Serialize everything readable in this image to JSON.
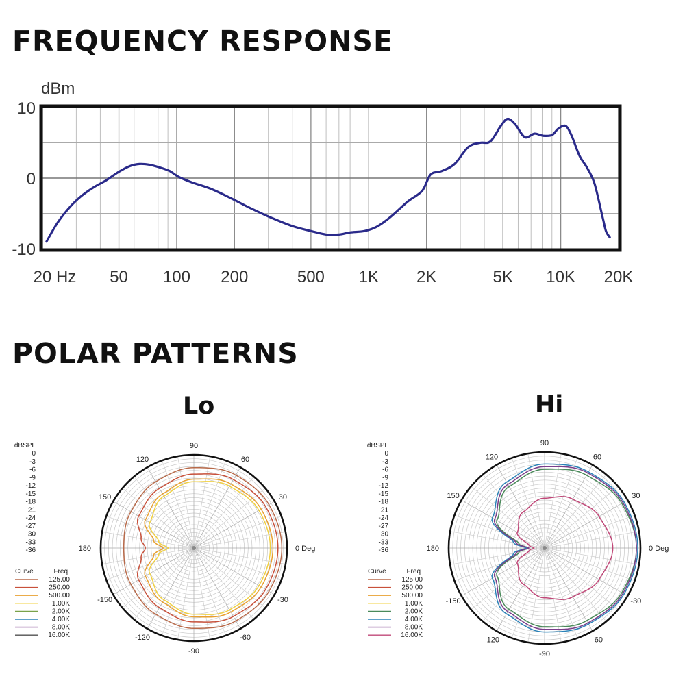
{
  "headings": {
    "frequency_response": "FREQUENCY RESPONSE",
    "polar_patterns": "POLAR PATTERNS"
  },
  "chart_data": [
    {
      "type": "line",
      "title": "FREQUENCY RESPONSE",
      "ylabel": "dBm",
      "xscale": "log",
      "xlim": [
        20,
        20000
      ],
      "ylim": [
        -10,
        10
      ],
      "yticks": [
        10,
        0,
        -10
      ],
      "ytick_labels": [
        "10",
        "0",
        "-10"
      ],
      "xticks": [
        20,
        50,
        100,
        200,
        500,
        1000,
        2000,
        5000,
        10000,
        20000
      ],
      "xtick_labels": [
        "20 Hz",
        "50",
        "100",
        "200",
        "500",
        "1K",
        "2K",
        "5K",
        "10K",
        "20K"
      ],
      "grid": true,
      "series": [
        {
          "color": "#2a2a8a",
          "x": [
            21,
            24,
            28,
            32,
            37,
            43,
            50,
            57,
            64,
            72,
            82,
            92,
            102,
            120,
            150,
            190,
            240,
            310,
            400,
            500,
            600,
            700,
            800,
            950,
            1100,
            1300,
            1600,
            1900,
            2100,
            2400,
            2800,
            3300,
            3800,
            4300,
            4900,
            5300,
            5800,
            6500,
            7300,
            8100,
            9000,
            9700,
            10600,
            11400,
            12500,
            13700,
            15000,
            16500,
            17200,
            18000
          ],
          "y": [
            -9.0,
            -6.3,
            -4.0,
            -2.5,
            -1.3,
            -0.3,
            0.9,
            1.7,
            2.0,
            1.9,
            1.5,
            1.0,
            0.2,
            -0.6,
            -1.5,
            -2.8,
            -4.2,
            -5.6,
            -6.8,
            -7.5,
            -8.0,
            -8.0,
            -7.7,
            -7.5,
            -6.9,
            -5.5,
            -3.3,
            -1.8,
            0.5,
            1.0,
            2.0,
            4.4,
            5.0,
            5.2,
            7.5,
            8.4,
            7.6,
            5.8,
            6.3,
            6.0,
            6.1,
            7.0,
            7.4,
            6.0,
            3.2,
            1.5,
            -0.8,
            -5.5,
            -7.5,
            -8.4
          ]
        }
      ]
    },
    {
      "type": "polar",
      "title": "Lo",
      "radial_label": "dBSPL",
      "radial_ticks": [
        "0",
        "-3",
        "-6",
        "-9",
        "-12",
        "-15",
        "-18",
        "-21",
        "-24",
        "-27",
        "-30",
        "-33",
        "-36"
      ],
      "angle_labels": [
        "0 Deg",
        "30",
        "60",
        "90",
        "120",
        "150",
        "180",
        "-150",
        "-120",
        "-90",
        "-60",
        "-30"
      ],
      "legend": {
        "headers": [
          "Curve",
          "Freq"
        ],
        "entries": [
          {
            "freq": "125.00",
            "color": "#b86a4a"
          },
          {
            "freq": "250.00",
            "color": "#c8503a"
          },
          {
            "freq": "500.00",
            "color": "#e8a030"
          },
          {
            "freq": "1.00K",
            "color": "#f0d040"
          },
          {
            "freq": "2.00K",
            "color": "#7aa24a"
          },
          {
            "freq": "4.00K",
            "color": "#2a82b8"
          },
          {
            "freq": "8.00K",
            "color": "#7a3e8a"
          },
          {
            "freq": "16.00K",
            "color": "#505050"
          }
        ]
      },
      "series": [
        {
          "freq": "125.00",
          "color": "#b86a4a",
          "angles_deg": [
            0,
            30,
            60,
            90,
            120,
            150,
            180,
            210,
            240,
            270,
            300,
            330
          ],
          "level_db": [
            -1.5,
            -2,
            -3,
            -4.5,
            -6,
            -7.5,
            -8.5,
            -7.5,
            -6,
            -4.5,
            -3,
            -2
          ]
        },
        {
          "freq": "250.00",
          "color": "#c8503a",
          "angles_deg": [
            0,
            30,
            60,
            90,
            120,
            150,
            170,
            180,
            190,
            210,
            240,
            270,
            300,
            330
          ],
          "level_db": [
            -3,
            -3.5,
            -5,
            -7,
            -9,
            -11,
            -15,
            -17,
            -15,
            -11,
            -9,
            -7,
            -5,
            -3.5
          ]
        },
        {
          "freq": "500.00",
          "color": "#e8a030",
          "angles_deg": [
            0,
            30,
            60,
            90,
            120,
            150,
            170,
            180,
            190,
            210,
            240,
            270,
            300,
            330
          ],
          "level_db": [
            -5,
            -5.5,
            -7,
            -9,
            -11.5,
            -14,
            -20,
            -24,
            -20,
            -14,
            -11.5,
            -9,
            -7,
            -5.5
          ]
        },
        {
          "freq": "1.00K",
          "color": "#f0d040",
          "angles_deg": [
            0,
            30,
            60,
            90,
            120,
            150,
            170,
            180,
            190,
            210,
            240,
            270,
            300,
            330
          ],
          "level_db": [
            -6,
            -6.5,
            -8,
            -10,
            -12.5,
            -16,
            -22,
            -26,
            -22,
            -16,
            -12.5,
            -10,
            -8,
            -6.5
          ]
        }
      ]
    },
    {
      "type": "polar",
      "title": "Hi",
      "radial_label": "dBSPL",
      "radial_ticks": [
        "0",
        "-3",
        "-6",
        "-9",
        "-12",
        "-15",
        "-18",
        "-21",
        "-24",
        "-27",
        "-30",
        "-33",
        "-36"
      ],
      "angle_labels": [
        "0 Deg",
        "30",
        "60",
        "90",
        "120",
        "150",
        "180",
        "-150",
        "-120",
        "-90",
        "-60",
        "-30"
      ],
      "legend": {
        "headers": [
          "Curve",
          "Freq"
        ],
        "entries": [
          {
            "freq": "125.00",
            "color": "#b86a4a"
          },
          {
            "freq": "250.00",
            "color": "#c8503a"
          },
          {
            "freq": "500.00",
            "color": "#e8a030"
          },
          {
            "freq": "1.00K",
            "color": "#f0d040"
          },
          {
            "freq": "2.00K",
            "color": "#4a8a5a"
          },
          {
            "freq": "4.00K",
            "color": "#2a82b8"
          },
          {
            "freq": "8.00K",
            "color": "#7a3e8a"
          },
          {
            "freq": "16.00K",
            "color": "#c04878"
          }
        ]
      },
      "series": [
        {
          "freq": "2.00K",
          "color": "#4a8a5a",
          "angles_deg": [
            0,
            30,
            60,
            90,
            120,
            150,
            170,
            180,
            190,
            210,
            240,
            270,
            300,
            330
          ],
          "level_db": [
            -1,
            -2,
            -4,
            -6,
            -9,
            -15,
            -26,
            -30,
            -26,
            -15,
            -9,
            -6,
            -4,
            -2
          ]
        },
        {
          "freq": "4.00K",
          "color": "#2a82b8",
          "angles_deg": [
            0,
            30,
            60,
            90,
            120,
            150,
            170,
            180,
            190,
            210,
            240,
            270,
            300,
            330
          ],
          "level_db": [
            -0.5,
            -1,
            -2.5,
            -4,
            -7,
            -13,
            -24,
            -29,
            -24,
            -13,
            -7,
            -4,
            -2.5,
            -1
          ]
        },
        {
          "freq": "8.00K",
          "color": "#7a3e8a",
          "angles_deg": [
            0,
            30,
            60,
            90,
            120,
            150,
            170,
            180,
            190,
            210,
            240,
            270,
            300,
            330
          ],
          "level_db": [
            -1,
            -1.5,
            -3,
            -5,
            -8,
            -14,
            -25,
            -30,
            -25,
            -14,
            -8,
            -5,
            -3,
            -1.5
          ]
        },
        {
          "freq": "16.00K",
          "color": "#c04878",
          "angles_deg": [
            0,
            30,
            60,
            90,
            120,
            150,
            170,
            180,
            190,
            210,
            240,
            270,
            300,
            330
          ],
          "level_db": [
            -10,
            -12,
            -14.5,
            -17,
            -20,
            -24,
            -30,
            -32,
            -30,
            -24,
            -20,
            -17,
            -14.5,
            -12
          ]
        }
      ]
    }
  ]
}
